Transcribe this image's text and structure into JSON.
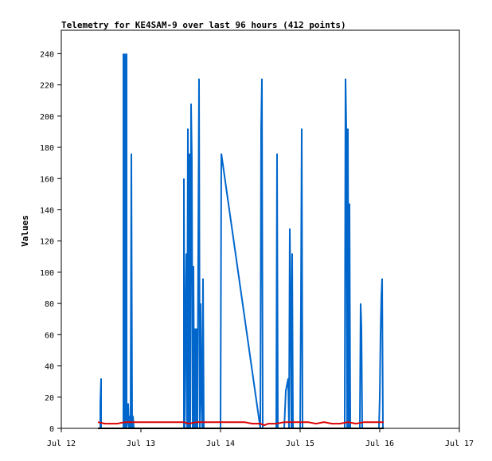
{
  "chart_data": {
    "type": "line",
    "title": "Telemetry for KE4SAM-9 over last 96 hours (412 points)",
    "xlabel": "",
    "ylabel": "Values",
    "x_ticks": [
      "Jul 12",
      "Jul 13",
      "Jul 14",
      "Jul 15",
      "Jul 16",
      "Jul 17"
    ],
    "xlim": [
      "Jul 12",
      "Jul 17"
    ],
    "ylim": [
      0,
      255
    ],
    "y_ticks": [
      0,
      20,
      40,
      60,
      80,
      100,
      120,
      140,
      160,
      180,
      200,
      220,
      240
    ],
    "grid": false,
    "legend": "none",
    "colors": {
      "series_blue": "#0066cc",
      "series_red": "#dd0000",
      "series_black": "#000000"
    },
    "series": [
      {
        "color": "#0066cc",
        "x": [
          12.49,
          12.49,
          12.5,
          12.5,
          12.51,
          12.78,
          12.78,
          12.79,
          12.8,
          12.8,
          12.81,
          12.81,
          12.82,
          12.82,
          12.83,
          12.84,
          12.85,
          12.86,
          12.87,
          12.88,
          12.89,
          12.9,
          12.91,
          13.54,
          13.54,
          13.55,
          13.56,
          13.57,
          13.58,
          13.59,
          13.6,
          13.61,
          13.62,
          13.63,
          13.64,
          13.65,
          13.66,
          13.67,
          13.68,
          13.69,
          13.7,
          13.71,
          13.72,
          13.73,
          13.74,
          13.75,
          13.76,
          13.77,
          13.78,
          13.79,
          13.8,
          14.0,
          14.01,
          14.5,
          14.51,
          14.52,
          14.53,
          14.54,
          14.7,
          14.71,
          14.72,
          14.8,
          14.82,
          14.85,
          14.86,
          14.87,
          14.88,
          14.89,
          14.9,
          14.91,
          15.0,
          15.01,
          15.02,
          15.03,
          15.56,
          15.57,
          15.58,
          15.59,
          15.6,
          15.61,
          15.62,
          15.63,
          15.75,
          15.76,
          15.77,
          15.78,
          15.99,
          16.0,
          16.01,
          16.02,
          16.03,
          16.04
        ],
        "y": [
          0,
          16,
          32,
          0,
          0,
          0,
          240,
          0,
          240,
          0,
          240,
          0,
          240,
          0,
          4,
          16,
          0,
          8,
          0,
          176,
          0,
          8,
          0,
          0,
          160,
          0,
          64,
          112,
          0,
          192,
          0,
          176,
          0,
          208,
          172,
          0,
          104,
          0,
          64,
          0,
          64,
          0,
          112,
          224,
          0,
          80,
          20,
          0,
          96,
          0,
          0,
          0,
          176,
          0,
          192,
          224,
          0,
          0,
          0,
          176,
          0,
          0,
          24,
          32,
          0,
          128,
          84,
          0,
          112,
          0,
          0,
          80,
          192,
          0,
          0,
          224,
          192,
          0,
          192,
          0,
          144,
          0,
          0,
          80,
          64,
          0,
          0,
          20,
          60,
          84,
          96,
          0
        ]
      },
      {
        "color": "#dd0000",
        "x": [
          12.46,
          12.55,
          12.6,
          12.7,
          12.8,
          12.9,
          13.0,
          13.2,
          13.4,
          13.54,
          13.6,
          13.7,
          13.8,
          14.0,
          14.1,
          14.2,
          14.3,
          14.4,
          14.5,
          14.55,
          14.6,
          14.7,
          14.8,
          14.9,
          15.0,
          15.1,
          15.2,
          15.3,
          15.4,
          15.5,
          15.6,
          15.7,
          15.8,
          15.9,
          16.0,
          16.05
        ],
        "y": [
          4,
          3,
          3,
          3,
          4,
          4,
          4,
          4,
          4,
          4,
          3,
          4,
          4,
          4,
          4,
          4,
          4,
          3,
          3,
          2,
          3,
          3,
          4,
          4,
          4,
          4,
          3,
          4,
          3,
          3,
          4,
          3,
          4,
          4,
          4,
          4
        ]
      },
      {
        "color": "#000000",
        "x": [
          12.46,
          16.05
        ],
        "y": [
          0,
          0
        ]
      }
    ]
  }
}
